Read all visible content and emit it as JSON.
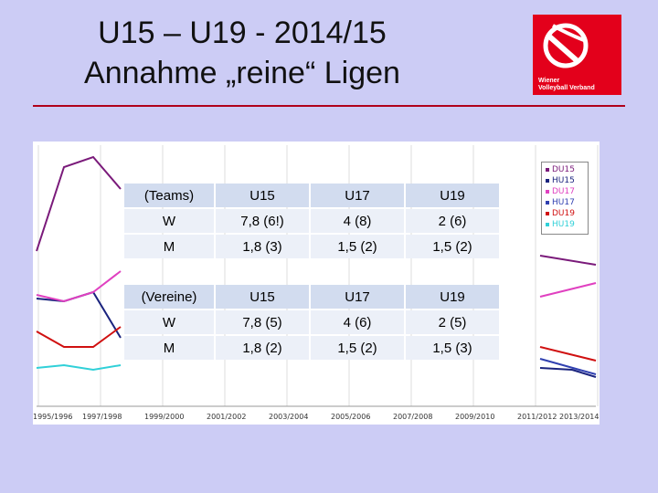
{
  "title": {
    "line1": "U15 – U19 - 2014/15",
    "line2": "Annahme „reine“ Ligen"
  },
  "logo": {
    "line1": "Wiener",
    "line2": "Volleyball Verband"
  },
  "colors": {
    "background": "#ccccf5",
    "rule": "#b0001a",
    "logo": "#e3001b",
    "table_header": "#d2dcef",
    "table_row": "#ecf0f8"
  },
  "chart_data": {
    "type": "line",
    "categories": [
      "1995/1996",
      "1997/1998",
      "1999/2000",
      "2001/2002",
      "2003/2004",
      "2005/2006",
      "2007/2008",
      "2009/2010",
      "2011/2012",
      "2013/2014"
    ],
    "series": [
      {
        "name": "DU15",
        "color": "#7a1a7a"
      },
      {
        "name": "HU15",
        "color": "#1a237e"
      },
      {
        "name": "DU17",
        "color": "#e040c0"
      },
      {
        "name": "HU17",
        "color": "#3040b0"
      },
      {
        "name": "DU19",
        "color": "#d01010"
      },
      {
        "name": "HU19",
        "color": "#30d0d8"
      }
    ],
    "legend_position": "top-right",
    "grid": true
  },
  "tables": [
    {
      "header": [
        "(Teams)",
        "U15",
        "U17",
        "U19"
      ],
      "rows": [
        [
          "W",
          "7,8 (6!)",
          "4 (8)",
          "2 (6)"
        ],
        [
          "M",
          "1,8 (3)",
          "1,5 (2)",
          "1,5 (2)"
        ]
      ]
    },
    {
      "header": [
        "(Vereine)",
        "U15",
        "U17",
        "U19"
      ],
      "rows": [
        [
          "W",
          "7,8 (5)",
          "4 (6)",
          "2 (5)"
        ],
        [
          "M",
          "1,8 (2)",
          "1,5 (2)",
          "1,5 (3)"
        ]
      ]
    }
  ]
}
